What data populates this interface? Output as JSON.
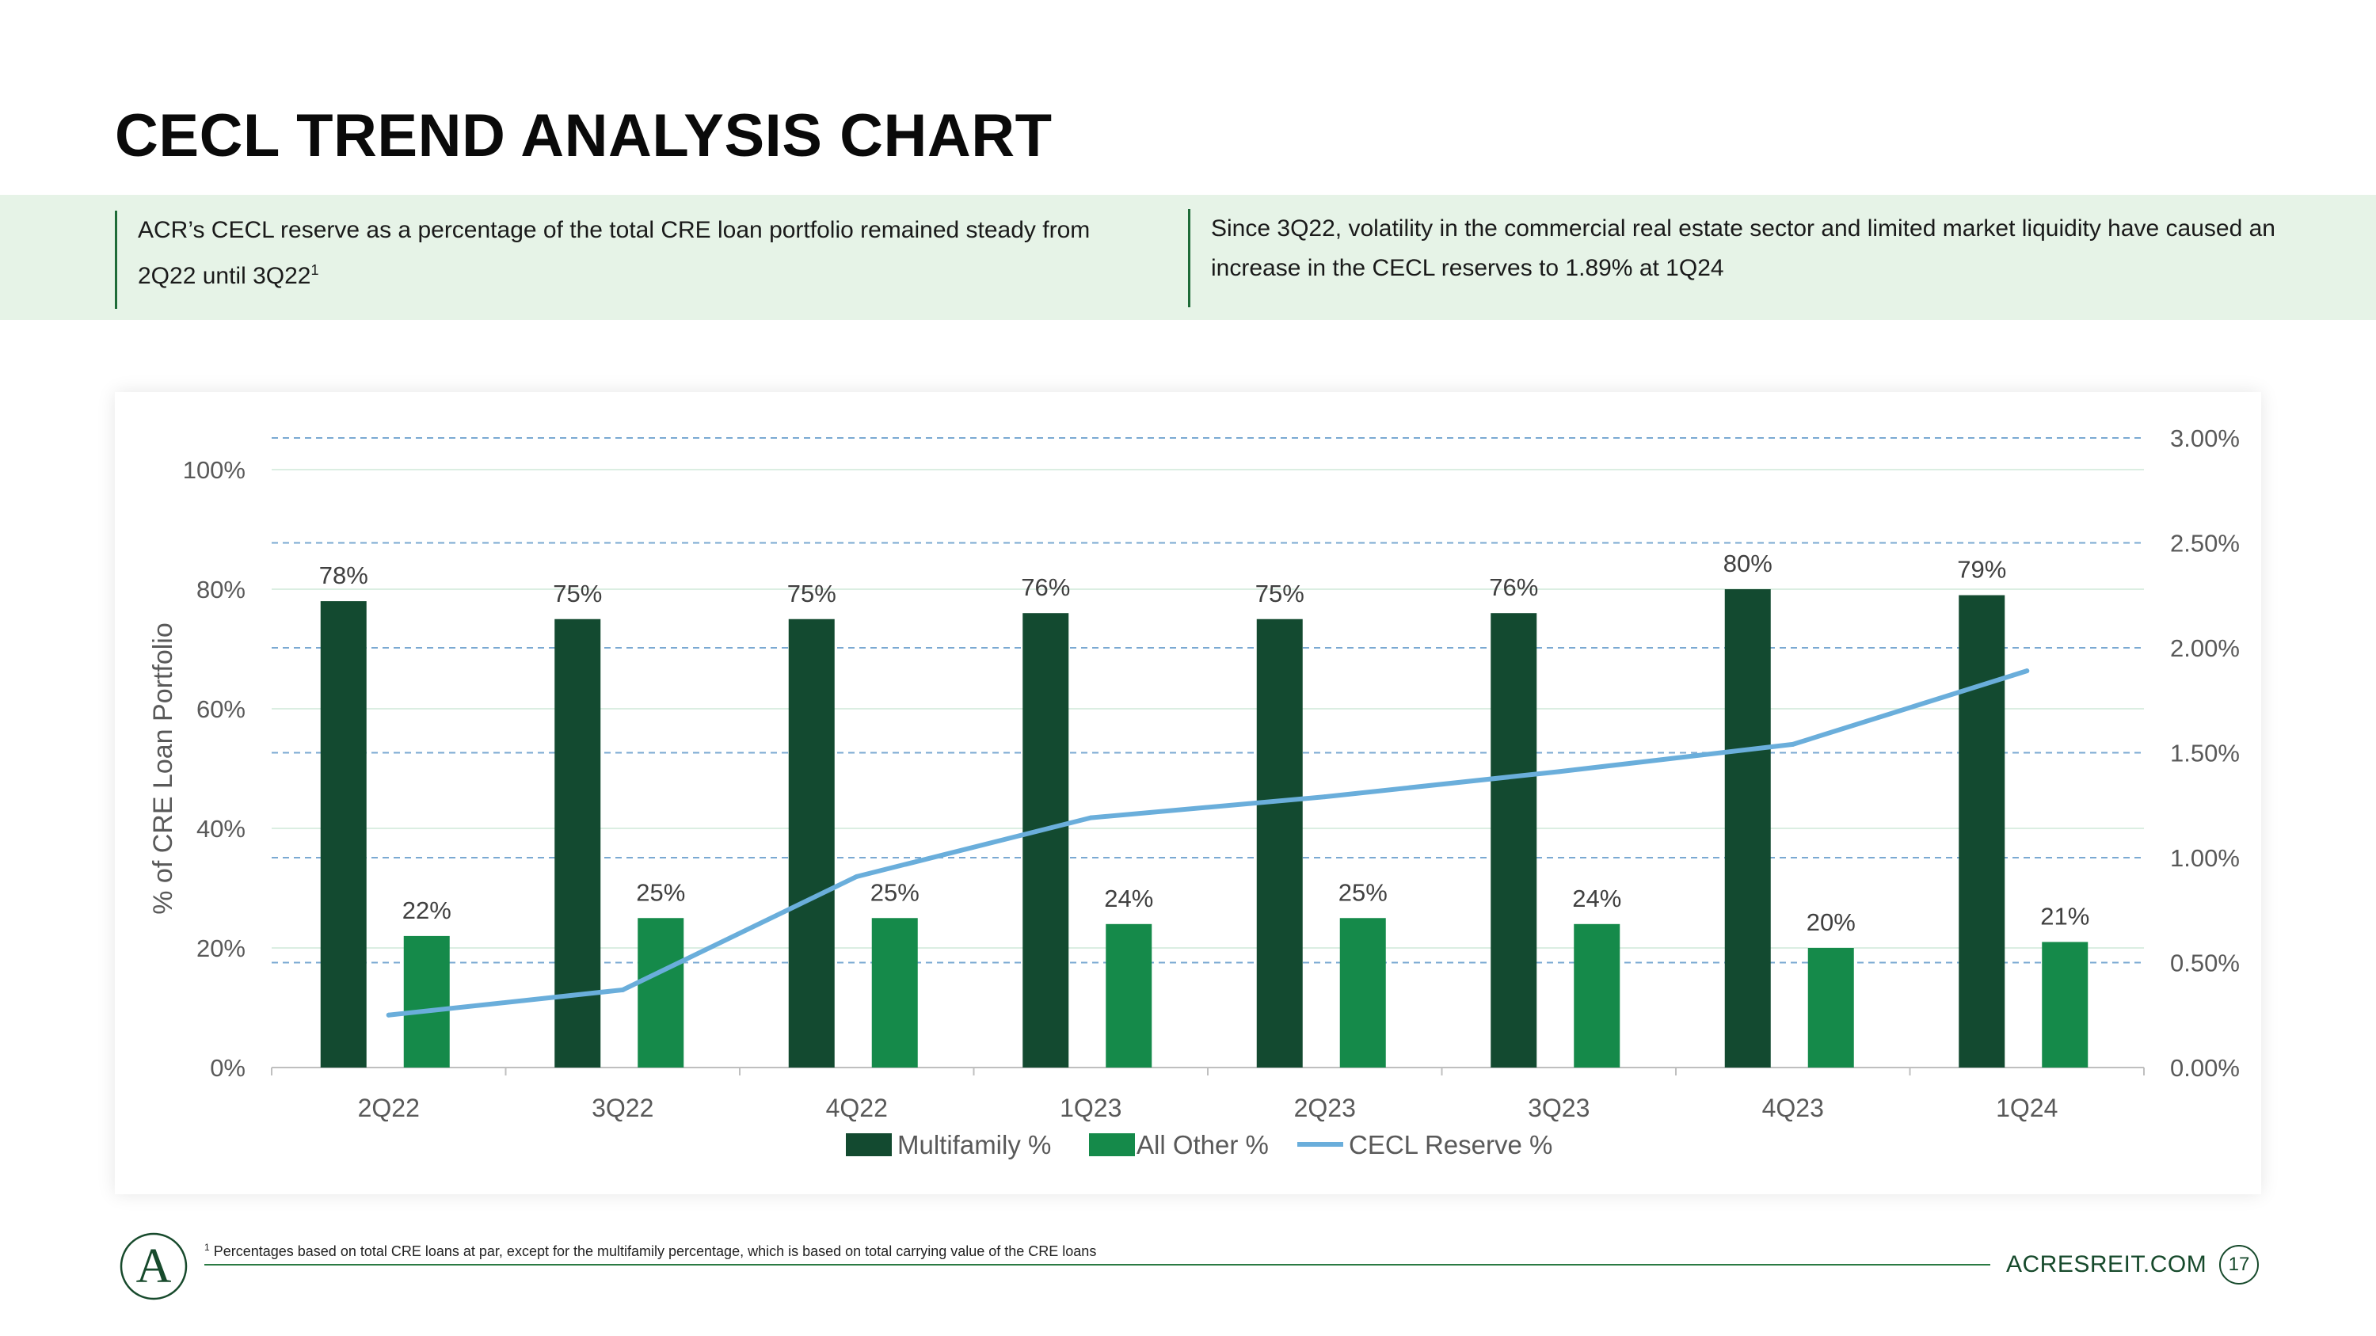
{
  "header": {
    "title": "CECL TREND ANALYSIS CHART"
  },
  "summary": {
    "left_text": "ACR’s CECL reserve as a percentage of the total CRE loan portfolio remained steady from 2Q22 until 3Q22",
    "left_footnote_marker": "1",
    "right_text": "Since 3Q22, volatility in the commercial real estate sector and limited market liquidity have caused an increase in the CECL reserves to 1.89% at 1Q24"
  },
  "colors": {
    "multifamily": "#134a30",
    "all_other": "#158a4a",
    "cecl_line": "#6aaedb",
    "band": "#e6f3e7",
    "accent": "#1e6b38"
  },
  "chart_data": {
    "type": "bar",
    "title": "",
    "categories": [
      "2Q22",
      "3Q22",
      "4Q22",
      "1Q23",
      "2Q23",
      "3Q23",
      "4Q23",
      "1Q24"
    ],
    "series": [
      {
        "name": "Multifamily %",
        "type": "bar",
        "axis": "left",
        "values": [
          78,
          75,
          75,
          76,
          75,
          76,
          80,
          79
        ],
        "labels": [
          "78%",
          "75%",
          "75%",
          "76%",
          "75%",
          "76%",
          "80%",
          "79%"
        ]
      },
      {
        "name": "All Other %",
        "type": "bar",
        "axis": "left",
        "values": [
          22,
          25,
          25,
          24,
          25,
          24,
          20,
          21
        ],
        "labels": [
          "22%",
          "25%",
          "25%",
          "24%",
          "25%",
          "24%",
          "20%",
          "21%"
        ]
      },
      {
        "name": "CECL Reserve %",
        "type": "line",
        "axis": "right",
        "values": [
          0.25,
          0.37,
          0.91,
          1.19,
          1.29,
          1.41,
          1.54,
          1.89
        ]
      }
    ],
    "ylabel": "% of CRE Loan Portfolio",
    "ylim": [
      0,
      100
    ],
    "y_ticks": [
      0,
      20,
      40,
      60,
      80,
      100
    ],
    "y_tick_labels": [
      "0%",
      "20%",
      "40%",
      "60%",
      "80%",
      "100%"
    ],
    "y2lim": [
      0,
      3
    ],
    "y2_ticks": [
      0,
      0.5,
      1,
      1.5,
      2,
      2.5,
      3
    ],
    "y2_tick_labels": [
      "0.00%",
      "0.50%",
      "1.00%",
      "1.50%",
      "2.00%",
      "2.50%",
      "3.00%"
    ],
    "legend": [
      "Multifamily %",
      "All Other %",
      "CECL Reserve %"
    ],
    "legend_position": "bottom"
  },
  "footer": {
    "logo_text": "A",
    "footnote_marker": "1",
    "footnote": "Percentages based on total CRE loans at par, except for the multifamily percentage, which is based on total carrying value of the CRE loans",
    "site": "ACRESREIT.COM",
    "page": "17"
  }
}
